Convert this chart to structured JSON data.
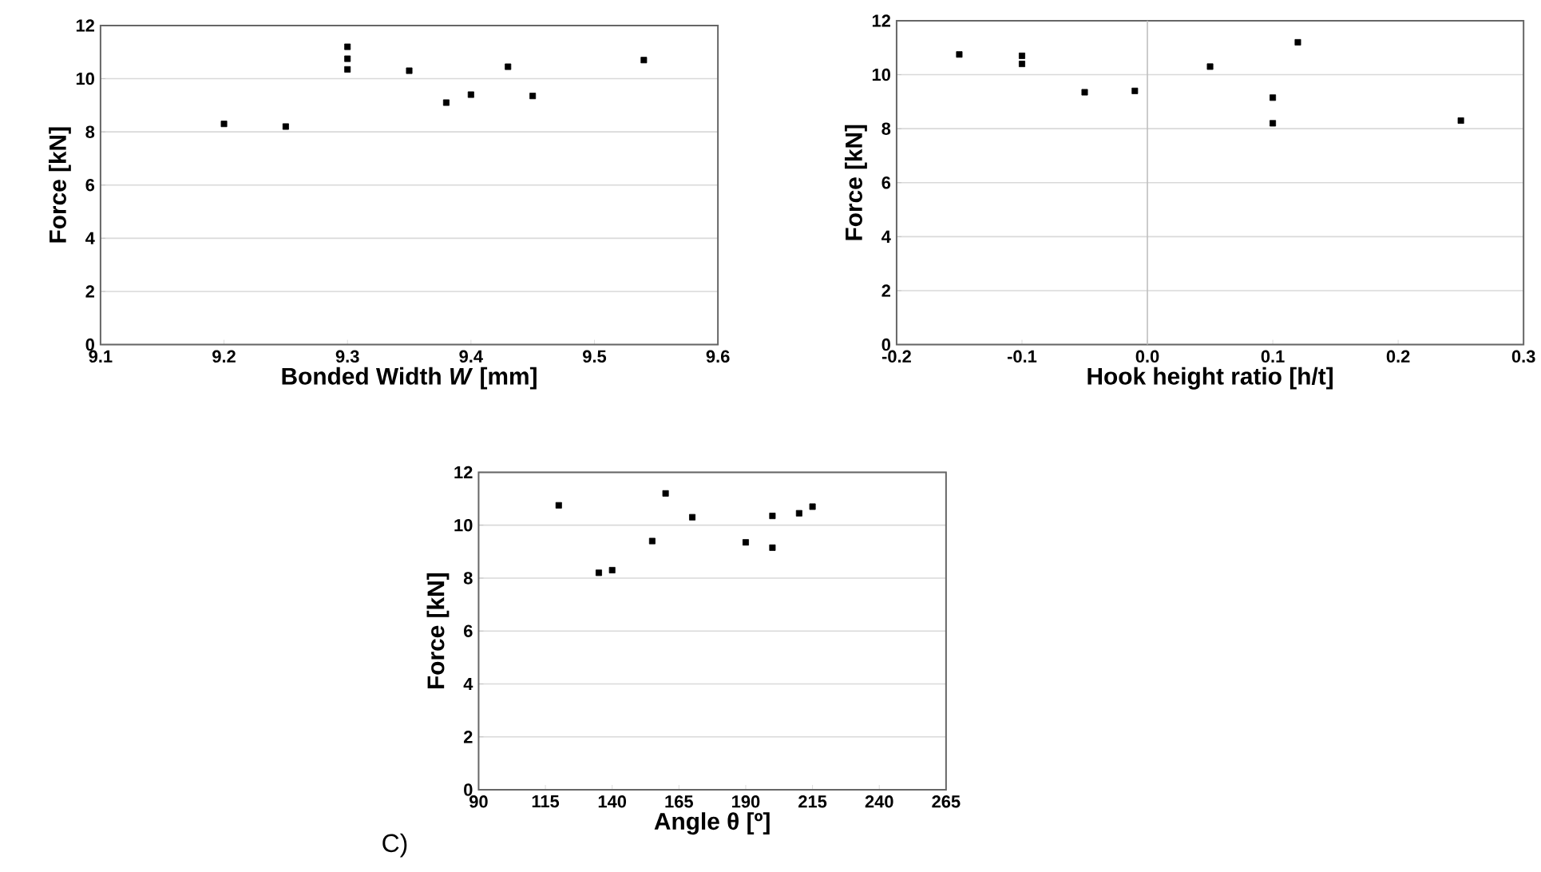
{
  "chart_data": [
    {
      "type": "scatter",
      "xlabel": "Bonded Width *W* [mm]",
      "ylabel": "Force [kN]",
      "xlim": [
        9.1,
        9.6
      ],
      "ylim": [
        0,
        12
      ],
      "xticks": [
        {
          "value": 9.1,
          "label": "9.1"
        },
        {
          "value": 9.2,
          "label": "9.2"
        },
        {
          "value": 9.3,
          "label": "9.3"
        },
        {
          "value": 9.4,
          "label": "9.4"
        },
        {
          "value": 9.5,
          "label": "9.5"
        },
        {
          "value": 9.6,
          "label": "9.6"
        }
      ],
      "yticks": [
        0,
        2,
        4,
        6,
        8,
        10,
        12
      ],
      "grid": "y",
      "marker": "square",
      "series": [
        {
          "color": "#000000",
          "x": [
            9.2,
            9.25,
            9.3,
            9.3,
            9.3,
            9.35,
            9.38,
            9.4,
            9.43,
            9.45,
            9.54
          ],
          "values": [
            8.3,
            8.2,
            11.2,
            10.75,
            10.35,
            10.3,
            9.1,
            9.4,
            10.45,
            9.35,
            10.7
          ]
        }
      ]
    },
    {
      "type": "scatter",
      "xlabel": "Hook height ratio [h/t]",
      "ylabel": "Force [kN]",
      "xlim": [
        -0.2,
        0.3
      ],
      "ylim": [
        0,
        12
      ],
      "xticks": [
        {
          "value": -0.2,
          "label": "-0.2"
        },
        {
          "value": -0.1,
          "label": "-0.1"
        },
        {
          "value": 0,
          "label": "0.0"
        },
        {
          "value": 0.1,
          "label": "0.1"
        },
        {
          "value": 0.2,
          "label": "0.2"
        },
        {
          "value": 0.3,
          "label": "0.3"
        }
      ],
      "yticks": [
        0,
        2,
        4,
        6,
        8,
        10,
        12
      ],
      "grid": "y",
      "marker": "square",
      "ref_lines": [
        {
          "axis": "x",
          "value": 0,
          "color": "#bfbfbf"
        }
      ],
      "series": [
        {
          "color": "#000000",
          "x": [
            -0.15,
            -0.1,
            -0.1,
            -0.05,
            -0.01,
            0.05,
            0.1,
            0.1,
            0.12,
            0.25
          ],
          "values": [
            10.75,
            10.7,
            10.4,
            9.35,
            9.4,
            10.3,
            9.15,
            8.2,
            11.2,
            8.3
          ]
        }
      ]
    },
    {
      "type": "scatter",
      "xlabel": "Angle θ [º]",
      "ylabel": "Force [kN]",
      "xlim": [
        90,
        265
      ],
      "ylim": [
        0,
        12
      ],
      "xticks": [
        90,
        115,
        140,
        165,
        190,
        215,
        240,
        265
      ],
      "yticks": [
        0,
        2,
        4,
        6,
        8,
        10,
        12
      ],
      "grid": "y",
      "marker": "square",
      "annotations": [
        "C)"
      ],
      "series": [
        {
          "color": "#000000",
          "x": [
            120,
            135,
            140,
            155,
            160,
            170,
            190,
            200,
            200,
            210,
            215
          ],
          "values": [
            10.75,
            8.2,
            8.3,
            9.4,
            11.2,
            10.3,
            9.35,
            10.35,
            9.15,
            10.45,
            10.7
          ]
        }
      ]
    }
  ]
}
